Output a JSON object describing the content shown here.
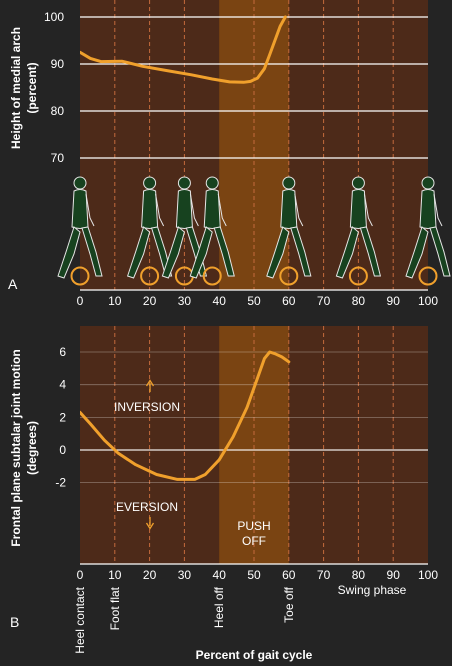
{
  "colors": {
    "background": "#242424",
    "plot_bg": "#4d2a19",
    "push_off_band": "#7a4412",
    "curve": "#f0a02c",
    "gridline": "#ffffff",
    "stance_dash": "#c46a3c",
    "figure_fill": "#17421f",
    "figure_outline": "#e6e6e6",
    "marker": "#f0a02c"
  },
  "chart_data": [
    {
      "type": "line",
      "panel_label": "A",
      "ylabel": "Height of medial arch (percent)",
      "x_ticks": [
        0,
        10,
        20,
        30,
        40,
        50,
        60,
        70,
        80,
        90,
        100
      ],
      "y_ticks": [
        70,
        80,
        90,
        100
      ],
      "xlim": [
        0,
        100
      ],
      "ylim": [
        70,
        100
      ],
      "grid": true,
      "series": [
        {
          "x": [
            0,
            3,
            6,
            12,
            18,
            25,
            32,
            38,
            43,
            47,
            49,
            51,
            53,
            54.5,
            56,
            57.5,
            59
          ],
          "y": [
            92.5,
            91.2,
            90.5,
            90.6,
            89.5,
            88.6,
            87.7,
            86.8,
            86.2,
            86.1,
            86.3,
            87.0,
            89.0,
            92.0,
            95.0,
            98.0,
            100.0
          ]
        }
      ],
      "gait_positions": [
        0,
        20,
        30,
        38,
        60,
        80,
        100
      ]
    },
    {
      "type": "line",
      "panel_label": "B",
      "ylabel": "Frontal plane subtalar joint motion (degrees)",
      "xlabel": "Percent of gait cycle",
      "x_ticks": [
        0,
        10,
        20,
        30,
        40,
        50,
        60,
        70,
        80,
        90,
        100
      ],
      "y_ticks": [
        -2,
        0,
        2,
        4,
        6
      ],
      "xlim": [
        0,
        100
      ],
      "ylim": [
        -8.5,
        7.5
      ],
      "grid": true,
      "series": [
        {
          "x": [
            0,
            3,
            7,
            11,
            16,
            22,
            28,
            33,
            36,
            40,
            44,
            48,
            51,
            53,
            54.5,
            56,
            58,
            60
          ],
          "y": [
            2.3,
            1.6,
            0.6,
            -0.2,
            -0.9,
            -1.5,
            -1.8,
            -1.8,
            -1.5,
            -0.6,
            0.8,
            2.6,
            4.4,
            5.6,
            6.0,
            5.9,
            5.7,
            5.4
          ]
        }
      ],
      "annotations": {
        "inversion": "INVERSION",
        "eversion": "EVERSION",
        "push_off_line1": "PUSH",
        "push_off_line2": "OFF"
      },
      "event_labels": [
        {
          "x": 0,
          "text": "Heel contact"
        },
        {
          "x": 10,
          "text": "Foot flat"
        },
        {
          "x": 40,
          "text": "Heel off"
        },
        {
          "x": 60,
          "text": "Toe off"
        }
      ],
      "swing_label": "Swing phase"
    }
  ],
  "push_off_range": [
    40,
    60
  ],
  "stance_dashes": [
    10,
    20,
    30,
    50,
    60
  ],
  "swing_dashes": [
    70,
    80,
    90
  ]
}
